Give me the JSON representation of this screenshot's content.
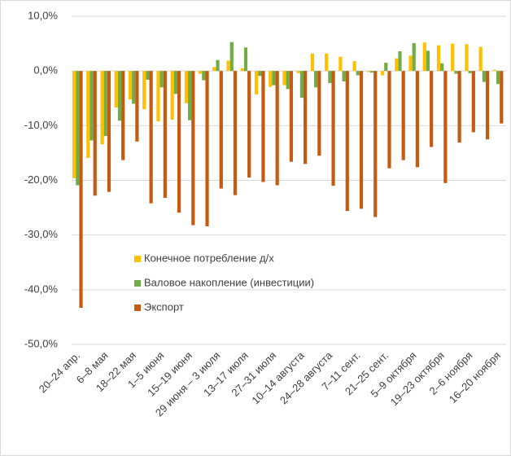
{
  "chart_data": {
    "type": "bar",
    "categories": [
      "20–24 апр.",
      null,
      "6–8 мая",
      null,
      "18–22 мая",
      null,
      "1–5 июня",
      null,
      "15–19 июня",
      null,
      "29 июня – 3 июля",
      null,
      "13–17 июля",
      null,
      "27–31 июля",
      null,
      "10–14 августа",
      null,
      "24–28 августа",
      null,
      "7–11 сент.",
      null,
      "21–25 сент.",
      null,
      "5–9 октября",
      null,
      "19–23 октября",
      null,
      "2–6 ноября",
      null,
      "16–20 ноября"
    ],
    "series": [
      {
        "name": "Конечное потребление д/х",
        "color": "#ffc000",
        "values": [
          -19.6,
          -15.9,
          -13.4,
          -6.7,
          -5.2,
          -7.0,
          -9.2,
          -8.9,
          -5.9,
          -0.5,
          0.7,
          1.9,
          0.5,
          -4.3,
          -2.9,
          -2.6,
          -0.4,
          3.2,
          3.2,
          2.6,
          1.8,
          -0.2,
          -0.8,
          2.3,
          2.8,
          5.2,
          4.7,
          5.0,
          4.9,
          4.4,
          0.2
        ]
      },
      {
        "name": "Валовое накопление (инвестиции)",
        "color": "#70ad47",
        "values": [
          -20.9,
          -12.7,
          -11.9,
          -9.1,
          -6.0,
          -1.6,
          -3.0,
          -4.2,
          -9.0,
          -1.7,
          2.0,
          5.3,
          4.3,
          -0.9,
          -2.6,
          -3.3,
          -4.9,
          -3.0,
          -2.2,
          -1.9,
          -0.8,
          -0.3,
          1.5,
          3.6,
          5.1,
          3.7,
          1.4,
          -0.5,
          -0.4,
          -2.0,
          -2.4
        ]
      },
      {
        "name": "Экспорт",
        "color": "#c55a11",
        "values": [
          -43.3,
          -22.8,
          -22.1,
          -16.3,
          -12.9,
          -24.2,
          -23.2,
          -25.9,
          -28.2,
          -28.4,
          -21.5,
          -22.7,
          -19.5,
          -20.3,
          -20.9,
          -16.6,
          -17.0,
          -15.5,
          -21.0,
          -25.6,
          -25.2,
          -26.7,
          -17.8,
          -16.3,
          -17.6,
          -13.9,
          -20.5,
          -13.1,
          -11.2,
          -12.5,
          -9.6
        ]
      }
    ],
    "ylim": [
      -50,
      10
    ],
    "yticks": [
      {
        "value": -50,
        "label": "-50,0%"
      },
      {
        "value": -40,
        "label": "-40,0%"
      },
      {
        "value": -30,
        "label": "-30,0%"
      },
      {
        "value": -20,
        "label": "-20,0%"
      },
      {
        "value": -10,
        "label": "-10,0%"
      },
      {
        "value": 0,
        "label": "0,0%"
      },
      {
        "value": 10,
        "label": "10,0%"
      }
    ],
    "grid": true,
    "legend": "inside"
  }
}
